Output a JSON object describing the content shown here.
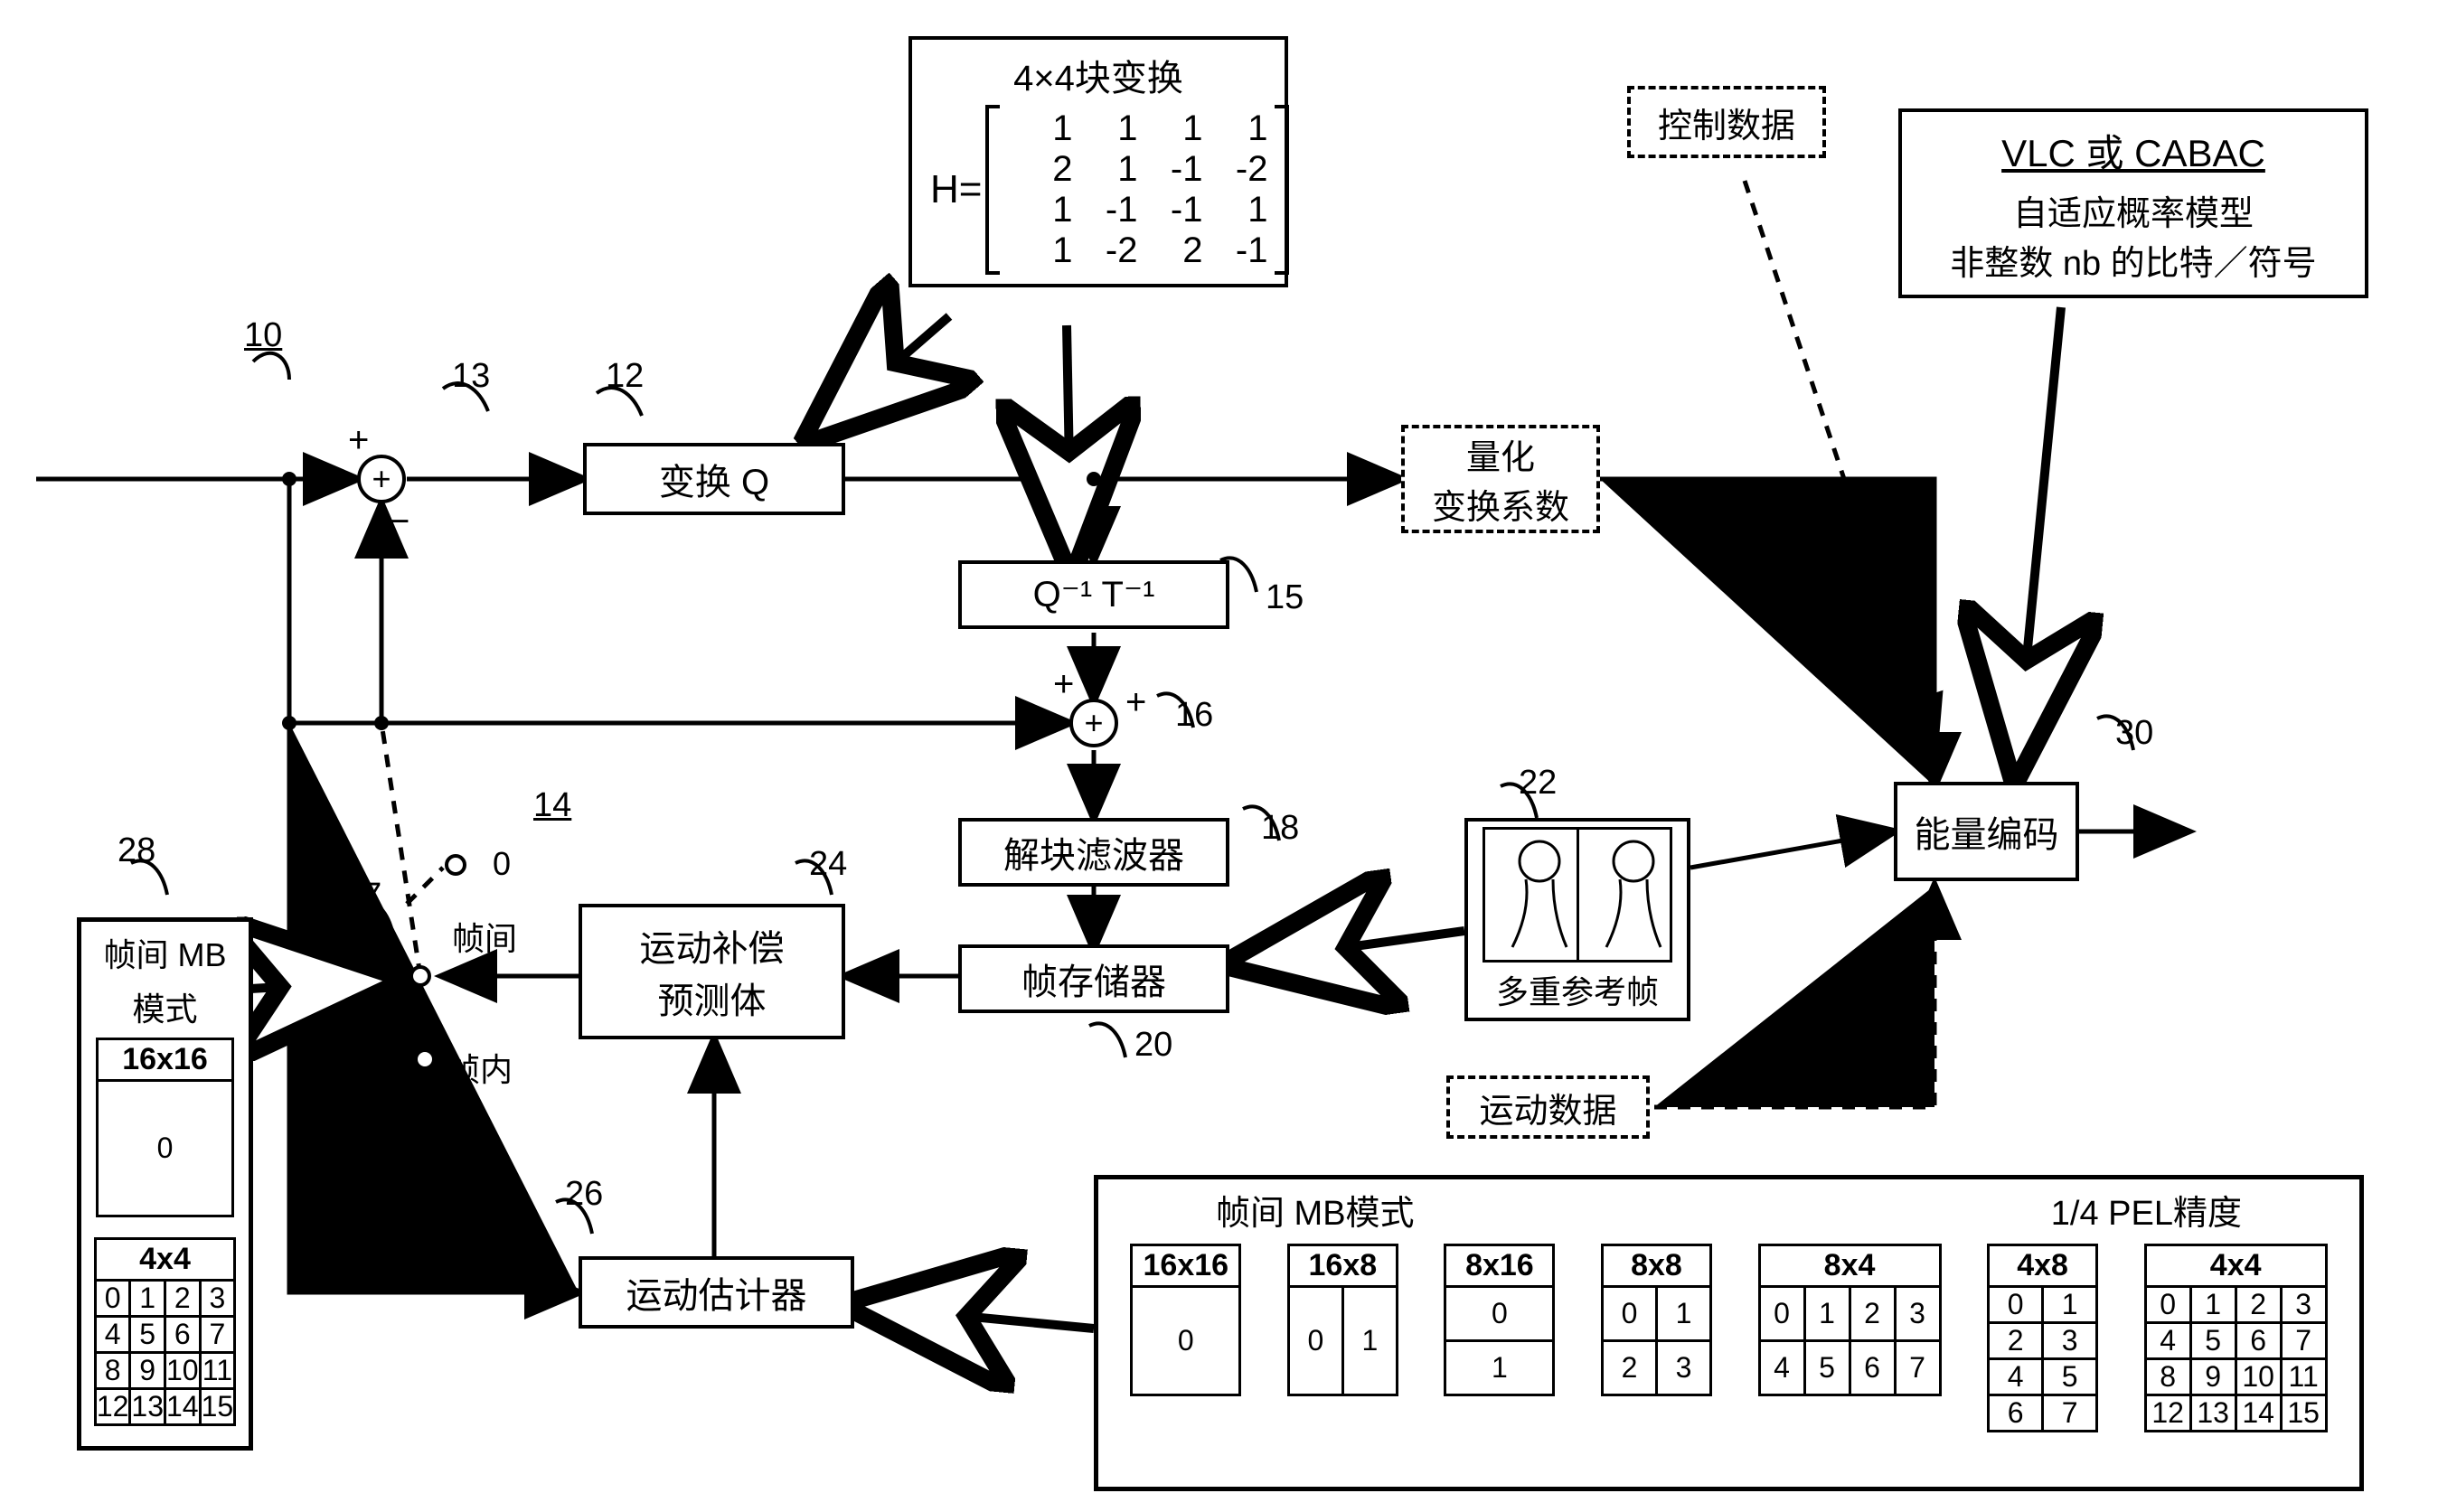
{
  "refs": {
    "r10": "10",
    "r12": "12",
    "r13": "13",
    "r14": "14",
    "r15": "15",
    "r16": "16",
    "r18": "18",
    "r20": "20",
    "r22": "22",
    "r24": "24",
    "r26": "26",
    "r27": "27",
    "r28": "28",
    "r30": "30"
  },
  "blocks": {
    "transformQ": "变换 Q",
    "invQT": "Q⁻¹  T⁻¹",
    "deblock": "解块滤波器",
    "frameStore": "帧存储器",
    "mcp": "运动补偿\n预测体",
    "me": "运动估计器",
    "entropy": "能量编码",
    "quantCoef_l1": "量化",
    "quantCoef_l2": "变换系数",
    "ctrlData": "控制数据",
    "motionData": "运动数据",
    "multiRef": "多重参考帧",
    "vlc_title": "VLC 或 CABAC",
    "vlc_l1": "自适应概率模型",
    "vlc_l2": "非整数 nb 的比特／符号"
  },
  "switch": {
    "zero": "0",
    "inter": "帧间",
    "intra": "帧内"
  },
  "matrix": {
    "title": "4×4块变换",
    "prefix": "H=",
    "rows": [
      [
        "1",
        "1",
        "1",
        "1"
      ],
      [
        "2",
        "1",
        "-1",
        "-2"
      ],
      [
        "1",
        "-1",
        "-1",
        "1"
      ],
      [
        "1",
        "-2",
        "2",
        "-1"
      ]
    ]
  },
  "panel28": {
    "title1": "帧间 MB",
    "title2": "模式",
    "h16": "16x16",
    "h4": "4x4",
    "zero": "0",
    "cells": [
      "0",
      "1",
      "2",
      "3",
      "4",
      "5",
      "6",
      "7",
      "8",
      "9",
      "10",
      "11",
      "12",
      "13",
      "14",
      "15"
    ]
  },
  "bottomPanel": {
    "left_title": "帧间 MB模式",
    "right_title": "1/4 PEL精度",
    "modes": [
      {
        "h": "16x16",
        "grid": [
          [
            "0"
          ]
        ],
        "cw": 120,
        "ch": 120
      },
      {
        "h": "16x8",
        "grid": [
          [
            "0",
            "1"
          ]
        ],
        "cw": 60,
        "ch": 120
      },
      {
        "h": "8x16",
        "grid": [
          [
            "0"
          ],
          [
            "1"
          ]
        ],
        "cw": 120,
        "ch": 60
      },
      {
        "h": "8x8",
        "grid": [
          [
            "0",
            "1"
          ],
          [
            "2",
            "3"
          ]
        ],
        "cw": 60,
        "ch": 60
      },
      {
        "h": "8x4",
        "grid": [
          [
            "0",
            "1",
            "2",
            "3"
          ],
          [
            "4",
            "5",
            "6",
            "7"
          ]
        ],
        "cw": 50,
        "ch": 60
      },
      {
        "h": "4x8",
        "grid": [
          [
            "0",
            "1"
          ],
          [
            "2",
            "3"
          ],
          [
            "4",
            "5"
          ],
          [
            "6",
            "7"
          ]
        ],
        "cw": 60,
        "ch": 40
      },
      {
        "h": "4x4",
        "grid": [
          [
            "0",
            "1",
            "2",
            "3"
          ],
          [
            "4",
            "5",
            "6",
            "7"
          ],
          [
            "8",
            "9",
            "10",
            "11"
          ],
          [
            "12",
            "13",
            "14",
            "15"
          ]
        ],
        "cw": 50,
        "ch": 40
      }
    ]
  },
  "colors": {
    "stroke": "#000000",
    "bg": "#ffffff"
  },
  "style": {
    "stroke_width": 4,
    "font_size": 38
  }
}
